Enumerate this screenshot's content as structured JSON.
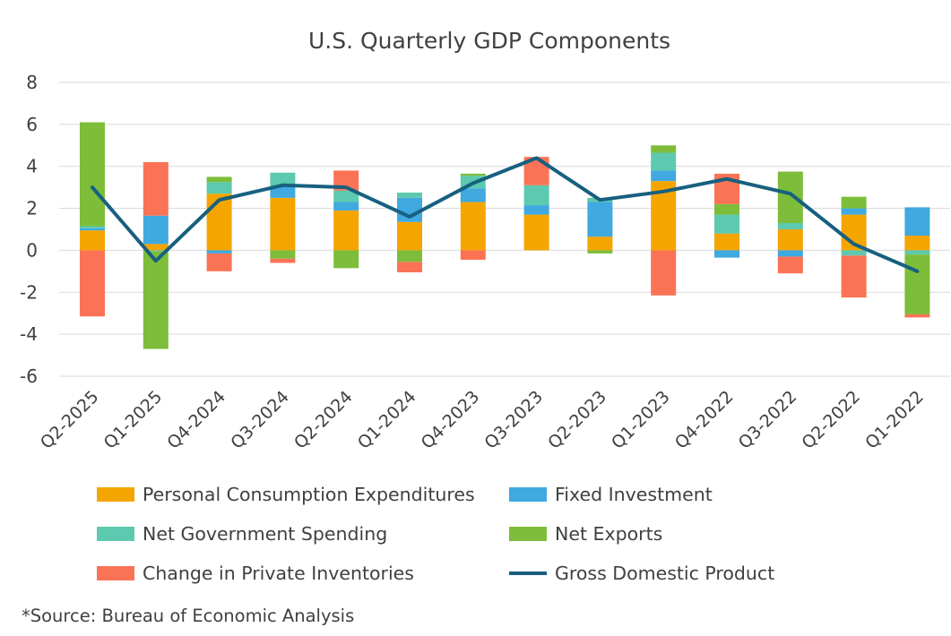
{
  "chart_data": {
    "type": "bar",
    "stacked": true,
    "title": "U.S. Quarterly GDP Components",
    "categories": [
      "Q2-2025",
      "Q1-2025",
      "Q4-2024",
      "Q3-2024",
      "Q2-2024",
      "Q1-2024",
      "Q4-2023",
      "Q3-2023",
      "Q2-2023",
      "Q1-2023",
      "Q4-2022",
      "Q3-2022",
      "Q2-2022",
      "Q1-2022"
    ],
    "ylim": [
      -6,
      8
    ],
    "yticks": [
      -6,
      -4,
      -2,
      0,
      2,
      4,
      6,
      8
    ],
    "grid": true,
    "legend_position": "bottom",
    "series": [
      {
        "name": "Personal Consumption Expenditures",
        "type": "bar",
        "color": "#F5A500",
        "values": [
          0.95,
          0.3,
          2.7,
          2.5,
          1.9,
          1.35,
          2.3,
          1.7,
          0.65,
          3.3,
          0.8,
          1.0,
          1.7,
          0.7
        ]
      },
      {
        "name": "Fixed Investment",
        "type": "bar",
        "color": "#3FA9E0",
        "values": [
          0.1,
          1.35,
          -0.15,
          0.55,
          0.4,
          1.15,
          0.65,
          0.45,
          1.65,
          0.5,
          -0.35,
          -0.3,
          0.3,
          1.35
        ]
      },
      {
        "name": "Net Government Spending",
        "type": "bar",
        "color": "#5DC9AE",
        "values": [
          0.1,
          -0.05,
          0.55,
          0.65,
          0.55,
          0.25,
          0.6,
          0.95,
          0.2,
          0.85,
          0.9,
          0.3,
          -0.25,
          -0.2
        ]
      },
      {
        "name": "Net Exports",
        "type": "bar",
        "color": "#7DBD3A",
        "values": [
          4.95,
          -4.65,
          0.25,
          -0.4,
          -0.85,
          -0.55,
          0.1,
          0.0,
          -0.15,
          0.35,
          0.5,
          2.45,
          0.55,
          -2.85
        ]
      },
      {
        "name": "Change in Private Inventories",
        "type": "bar",
        "color": "#FA7355",
        "values": [
          -3.15,
          2.55,
          -0.85,
          -0.2,
          0.95,
          -0.5,
          -0.45,
          1.35,
          0.0,
          -2.15,
          1.45,
          -0.8,
          -2.0,
          -0.15
        ]
      },
      {
        "name": "Gross Domestic Product",
        "type": "line",
        "color": "#17607F",
        "values": [
          3.0,
          -0.5,
          2.4,
          3.1,
          3.0,
          1.6,
          3.2,
          4.4,
          2.4,
          2.8,
          3.4,
          2.7,
          0.3,
          -1.0
        ]
      }
    ],
    "footnote": "*Source: Bureau of Economic Analysis"
  }
}
